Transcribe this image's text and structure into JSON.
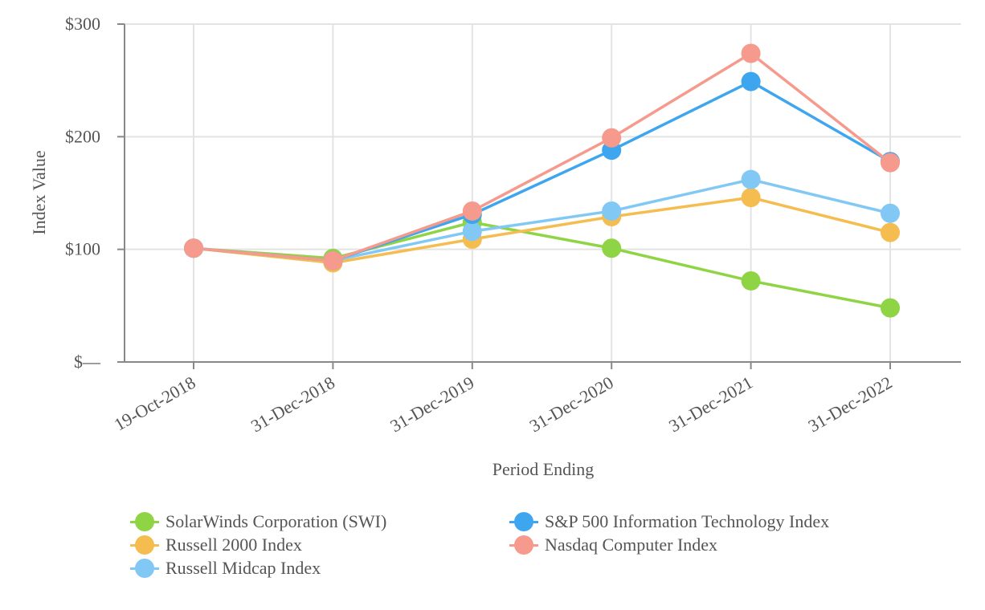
{
  "chart_data": {
    "type": "line",
    "title": "",
    "xlabel": "Period Ending",
    "ylabel": "Index Value",
    "categories": [
      "19-Oct-2018",
      "31-Dec-2018",
      "31-Dec-2019",
      "31-Dec-2020",
      "31-Dec-2021",
      "31-Dec-2022"
    ],
    "ylim": [
      0,
      300
    ],
    "yticks": [
      0,
      100,
      200,
      300
    ],
    "ytick_labels": [
      "$—",
      "$100",
      "$200",
      "$300"
    ],
    "grid": true,
    "legend_position": "bottom",
    "series": [
      {
        "name": "SolarWinds Corporation (SWI)",
        "color": "#8fd444",
        "values": [
          101,
          92,
          124,
          101,
          72,
          48
        ]
      },
      {
        "name": "Russell 2000 Index",
        "color": "#f5bd4f",
        "values": [
          101,
          88,
          109,
          129,
          146,
          115
        ]
      },
      {
        "name": "Russell Midcap Index",
        "color": "#82c8f5",
        "values": [
          101,
          90,
          116,
          134,
          162,
          132
        ]
      },
      {
        "name": "S&P 500 Information Technology Index",
        "color": "#3ea6ef",
        "values": [
          101,
          90,
          131,
          188,
          249,
          178
        ]
      },
      {
        "name": "Nasdaq Computer Index",
        "color": "#f59a8c",
        "values": [
          101,
          90,
          134,
          199,
          274,
          177
        ]
      }
    ]
  }
}
